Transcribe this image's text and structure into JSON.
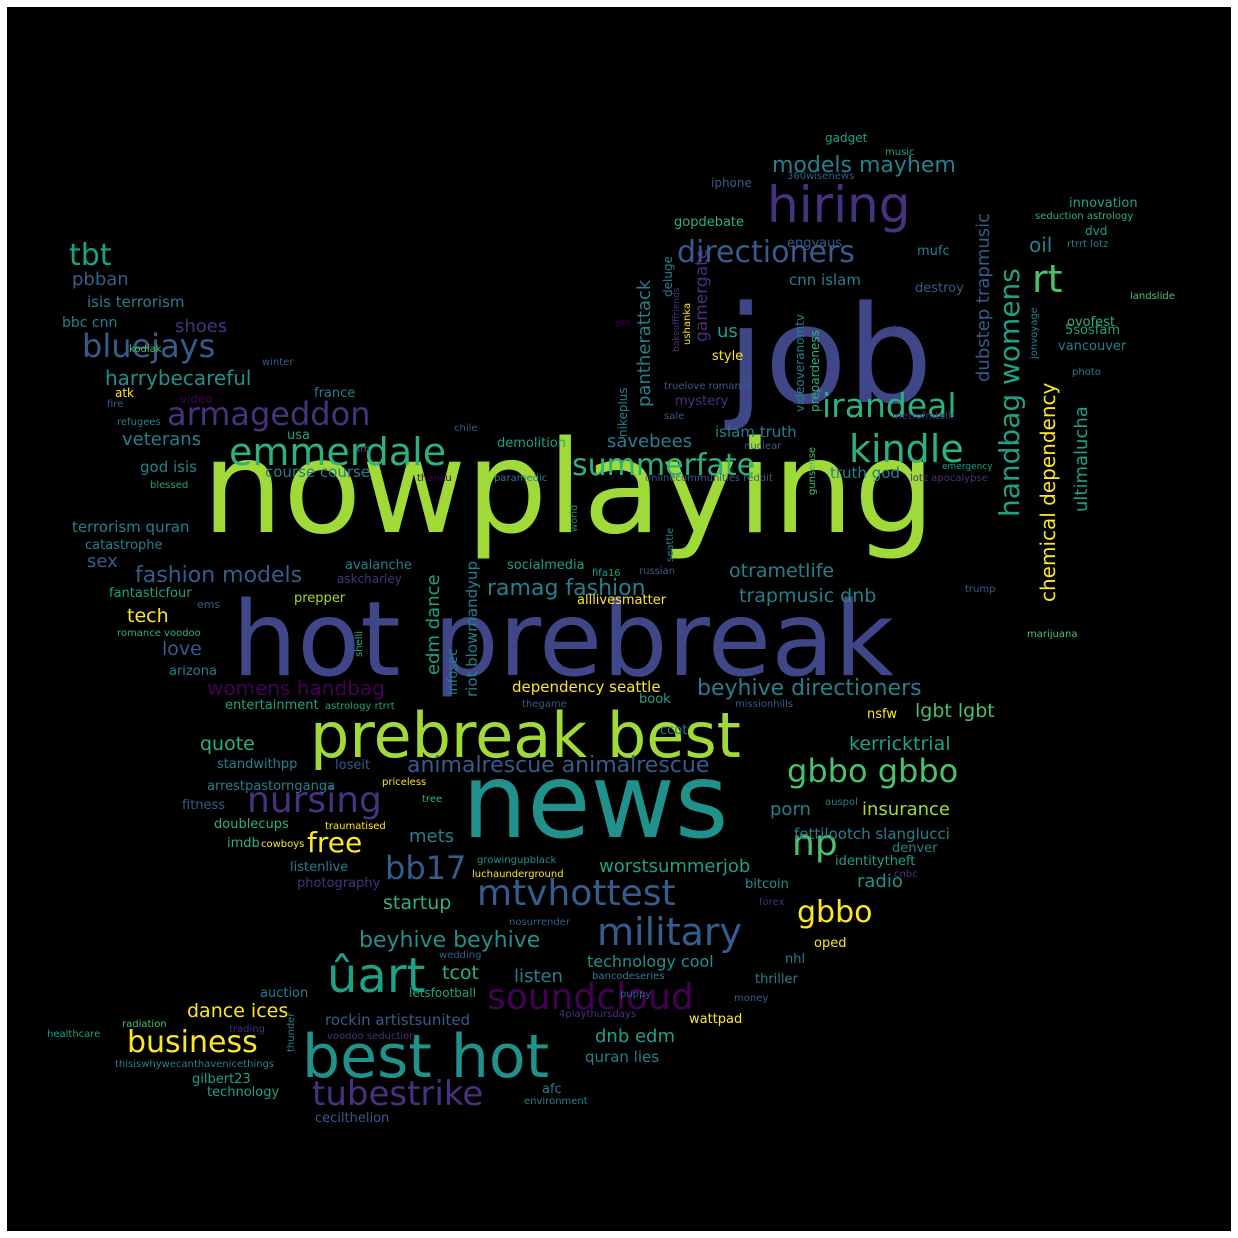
{
  "background": "#000000",
  "palette": {
    "yellow": "#fde725",
    "lime": "#a0da39",
    "green": "#4ac16d",
    "teal2": "#2db27d",
    "teal": "#1fa187",
    "cyan": "#21918c",
    "blue": "#277f8e",
    "blue2": "#365c8d",
    "indigo": "#3f4788",
    "violet": "#46327e",
    "purple": "#440154"
  },
  "words": [
    {
      "text": "nowplaying",
      "color": "lime"
    },
    {
      "text": "job",
      "color": "indigo"
    },
    {
      "text": "hot prebreak",
      "color": "indigo"
    },
    {
      "text": "news",
      "color": "cyan"
    },
    {
      "text": "prebreak best",
      "color": "lime"
    },
    {
      "text": "best hot",
      "color": "cyan"
    },
    {
      "text": "hiring",
      "color": "violet"
    },
    {
      "text": "emmerdale",
      "color": "teal2"
    },
    {
      "text": "kindle",
      "color": "teal2"
    },
    {
      "text": "rt",
      "color": "green"
    },
    {
      "text": "irandeal",
      "color": "teal2"
    },
    {
      "text": "directioners",
      "color": "blue2"
    },
    {
      "text": "summerfate",
      "color": "teal2"
    },
    {
      "text": "armageddon",
      "color": "violet"
    },
    {
      "text": "bluejays",
      "color": "blue2"
    },
    {
      "text": "tbt",
      "color": "teal"
    },
    {
      "text": "military",
      "color": "blue2"
    },
    {
      "text": "mtvhottest",
      "color": "blue2"
    },
    {
      "text": "nursing",
      "color": "violet"
    },
    {
      "text": "soundcloud",
      "color": "purple"
    },
    {
      "text": "tubestrike",
      "color": "violet"
    },
    {
      "text": "business",
      "color": "yellow"
    },
    {
      "text": "ûart",
      "color": "teal"
    },
    {
      "text": "gbbo gbbo",
      "color": "green"
    },
    {
      "text": "np",
      "color": "green"
    },
    {
      "text": "gbbo",
      "color": "yellow"
    },
    {
      "text": "bb17",
      "color": "blue2"
    },
    {
      "text": "free",
      "color": "yellow"
    },
    {
      "text": "handbag womens",
      "color": "teal"
    },
    {
      "text": "chemical dependency",
      "color": "yellow"
    },
    {
      "text": "dubstep trapmusic",
      "color": "blue2"
    },
    {
      "text": "ultimalucha",
      "color": "teal"
    },
    {
      "text": "models mayhem",
      "color": "blue"
    },
    {
      "text": "fashion models",
      "color": "blue2"
    },
    {
      "text": "ramag fashion",
      "color": "blue"
    },
    {
      "text": "womens handbag",
      "color": "purple"
    },
    {
      "text": "beyhive directioners",
      "color": "blue"
    },
    {
      "text": "animalrescue animalrescue",
      "color": "blue2"
    },
    {
      "text": "beyhive beyhive",
      "color": "cyan"
    },
    {
      "text": "harrybecareful",
      "color": "cyan"
    },
    {
      "text": "pbban",
      "color": "blue2"
    },
    {
      "text": "isis terrorism",
      "color": "blue"
    },
    {
      "text": "bbc cnn",
      "color": "blue"
    },
    {
      "text": "shoes",
      "color": "violet"
    },
    {
      "text": "veterans",
      "color": "blue"
    },
    {
      "text": "god isis",
      "color": "blue"
    },
    {
      "text": "terrorism quran",
      "color": "blue"
    },
    {
      "text": "catastrophe",
      "color": "blue"
    },
    {
      "text": "sex",
      "color": "blue2"
    },
    {
      "text": "fantasticfour",
      "color": "teal"
    },
    {
      "text": "tech",
      "color": "yellow"
    },
    {
      "text": "love",
      "color": "blue2"
    },
    {
      "text": "arizona",
      "color": "blue"
    },
    {
      "text": "course course",
      "color": "blue"
    },
    {
      "text": "savebees",
      "color": "blue"
    },
    {
      "text": "otrametlife",
      "color": "blue"
    },
    {
      "text": "trapmusic dnb",
      "color": "blue"
    },
    {
      "text": "edm dance",
      "color": "teal"
    },
    {
      "text": "riot blowmandyup",
      "color": "blue"
    },
    {
      "text": "infosec",
      "color": "blue"
    },
    {
      "text": "us",
      "color": "teal"
    },
    {
      "text": "oil",
      "color": "blue"
    },
    {
      "text": "cnn islam",
      "color": "blue"
    },
    {
      "text": "lgbt lgbt",
      "color": "green"
    },
    {
      "text": "kerricktrial",
      "color": "teal"
    },
    {
      "text": "insurance",
      "color": "lime"
    },
    {
      "text": "porn",
      "color": "blue"
    },
    {
      "text": "mets",
      "color": "blue"
    },
    {
      "text": "radio",
      "color": "cyan"
    },
    {
      "text": "startup",
      "color": "teal2"
    },
    {
      "text": "worstsummerjob",
      "color": "teal"
    },
    {
      "text": "quote",
      "color": "teal2"
    },
    {
      "text": "dance ices",
      "color": "yellow"
    },
    {
      "text": "tcot",
      "color": "teal2"
    },
    {
      "text": "listen",
      "color": "blue"
    },
    {
      "text": "dnb edm",
      "color": "teal"
    },
    {
      "text": "rockin artistsunited",
      "color": "blue2"
    },
    {
      "text": "quran lies",
      "color": "blue"
    },
    {
      "text": "technology cool",
      "color": "cyan"
    },
    {
      "text": "dependency seattle",
      "color": "yellow"
    },
    {
      "text": "pantherattack",
      "color": "blue"
    },
    {
      "text": "gamergate",
      "color": "violet"
    },
    {
      "text": "5sosfam",
      "color": "teal"
    },
    {
      "text": "vancouver",
      "color": "blue"
    },
    {
      "text": "innovation",
      "color": "teal"
    },
    {
      "text": "gopdebate",
      "color": "teal2"
    },
    {
      "text": "engvaus",
      "color": "blue2"
    },
    {
      "text": "mufc",
      "color": "blue"
    },
    {
      "text": "destroy",
      "color": "blue2"
    },
    {
      "text": "ovofest",
      "color": "teal2"
    },
    {
      "text": "dvd",
      "color": "teal"
    },
    {
      "text": "gadget",
      "color": "teal"
    },
    {
      "text": "iphone",
      "color": "blue2"
    },
    {
      "text": "music",
      "color": "teal"
    },
    {
      "text": "360wisenews",
      "color": "blue2"
    },
    {
      "text": "seduction astrology",
      "color": "teal2"
    },
    {
      "text": "rtrrt lotz",
      "color": "blue"
    },
    {
      "text": "landslide",
      "color": "green"
    },
    {
      "text": "photo",
      "color": "blue"
    },
    {
      "text": "uk",
      "color": "violet"
    },
    {
      "text": "jonvoyage",
      "color": "blue"
    },
    {
      "text": "style",
      "color": "yellow"
    },
    {
      "text": "prepardeness",
      "color": "teal2"
    },
    {
      "text": "videoveranomtv",
      "color": "blue"
    },
    {
      "text": "mystery",
      "color": "violet"
    },
    {
      "text": "truelove romance",
      "color": "blue2"
    },
    {
      "text": "sale",
      "color": "blue2"
    },
    {
      "text": "metrofmtalk",
      "color": "violet"
    },
    {
      "text": "islam truth",
      "color": "blue"
    },
    {
      "text": "nuclear",
      "color": "blue2"
    },
    {
      "text": "truth god",
      "color": "blue"
    },
    {
      "text": "gunsense",
      "color": "green"
    },
    {
      "text": "emergency",
      "color": "teal"
    },
    {
      "text": "lotz apocalypse",
      "color": "violet"
    },
    {
      "text": "onlinecommunities reddit",
      "color": "blue2"
    },
    {
      "text": "paramedic",
      "color": "blue"
    },
    {
      "text": "demolition",
      "color": "teal"
    },
    {
      "text": "thanku",
      "color": "purple"
    },
    {
      "text": "chile",
      "color": "blue2"
    },
    {
      "text": "world",
      "color": "blue"
    },
    {
      "text": "seattle",
      "color": "blue"
    },
    {
      "text": "fifa16",
      "color": "teal"
    },
    {
      "text": "socialmedia",
      "color": "teal"
    },
    {
      "text": "russian",
      "color": "blue2"
    },
    {
      "text": "avalanche",
      "color": "blue"
    },
    {
      "text": "askcharley",
      "color": "violet"
    },
    {
      "text": "prepper",
      "color": "lime"
    },
    {
      "text": "alllivesmatter",
      "color": "yellow"
    },
    {
      "text": "ems",
      "color": "blue2"
    },
    {
      "text": "romance voodoo",
      "color": "teal2"
    },
    {
      "text": "shelli",
      "color": "teal2"
    },
    {
      "text": "marijuana",
      "color": "green"
    },
    {
      "text": "trump",
      "color": "blue2"
    },
    {
      "text": "book",
      "color": "teal"
    },
    {
      "text": "thegame",
      "color": "blue2"
    },
    {
      "text": "missionhills",
      "color": "blue2"
    },
    {
      "text": "entertainment",
      "color": "teal"
    },
    {
      "text": "astrology rtrrt",
      "color": "teal"
    },
    {
      "text": "nsfw",
      "color": "yellow"
    },
    {
      "text": "ccot",
      "color": "blue"
    },
    {
      "text": "standwithpp",
      "color": "blue"
    },
    {
      "text": "loseit",
      "color": "blue2"
    },
    {
      "text": "arrestpastornganga",
      "color": "blue"
    },
    {
      "text": "priceless",
      "color": "yellow"
    },
    {
      "text": "fitness",
      "color": "blue2"
    },
    {
      "text": "tree",
      "color": "teal2"
    },
    {
      "text": "auspol",
      "color": "blue"
    },
    {
      "text": "traumatised",
      "color": "yellow"
    },
    {
      "text": "doublecups",
      "color": "teal2"
    },
    {
      "text": "imdb",
      "color": "teal2"
    },
    {
      "text": "cowboys",
      "color": "yellow"
    },
    {
      "text": "fettilootch slanglucci",
      "color": "blue"
    },
    {
      "text": "denver",
      "color": "blue"
    },
    {
      "text": "identitytheft",
      "color": "teal"
    },
    {
      "text": "cnbc",
      "color": "violet"
    },
    {
      "text": "listenlive",
      "color": "blue"
    },
    {
      "text": "growingupblack",
      "color": "cyan"
    },
    {
      "text": "luchaunderground",
      "color": "yellow"
    },
    {
      "text": "photography",
      "color": "violet"
    },
    {
      "text": "bitcoin",
      "color": "cyan"
    },
    {
      "text": "forex",
      "color": "violet"
    },
    {
      "text": "nosurrender",
      "color": "blue2"
    },
    {
      "text": "oped",
      "color": "yellow"
    },
    {
      "text": "nhl",
      "color": "blue"
    },
    {
      "text": "wedding",
      "color": "blue2"
    },
    {
      "text": "bancodeseries",
      "color": "blue"
    },
    {
      "text": "thriller",
      "color": "blue"
    },
    {
      "text": "auction",
      "color": "blue"
    },
    {
      "text": "letsfootball",
      "color": "teal"
    },
    {
      "text": "puppy",
      "color": "blue2"
    },
    {
      "text": "money",
      "color": "blue2"
    },
    {
      "text": "4playthursdays",
      "color": "violet"
    },
    {
      "text": "wattpad",
      "color": "yellow"
    },
    {
      "text": "radiation",
      "color": "green"
    },
    {
      "text": "trading",
      "color": "violet"
    },
    {
      "text": "healthcare",
      "color": "teal"
    },
    {
      "text": "voodoo seduction",
      "color": "violet"
    },
    {
      "text": "thunder",
      "color": "blue"
    },
    {
      "text": "thisiswhywecanthavenicethings",
      "color": "blue"
    },
    {
      "text": "gilbert23",
      "color": "teal"
    },
    {
      "text": "technology",
      "color": "teal"
    },
    {
      "text": "afc",
      "color": "blue"
    },
    {
      "text": "environment",
      "color": "blue"
    },
    {
      "text": "cecilthelion",
      "color": "blue2"
    },
    {
      "text": "blessed",
      "color": "teal"
    },
    {
      "text": "usa",
      "color": "teal"
    },
    {
      "text": "sm",
      "color": "blue2"
    },
    {
      "text": "france",
      "color": "blue"
    },
    {
      "text": "video",
      "color": "purple"
    },
    {
      "text": "fire",
      "color": "blue2"
    },
    {
      "text": "refugees",
      "color": "blue"
    },
    {
      "text": "atk",
      "color": "yellow"
    },
    {
      "text": "winter",
      "color": "blue2"
    },
    {
      "text": "kodiak",
      "color": "green"
    },
    {
      "text": "yes",
      "color": "purple"
    },
    {
      "text": "bakeofffriends",
      "color": "violet"
    },
    {
      "text": "deluge",
      "color": "blue"
    },
    {
      "text": "ushanka",
      "color": "yellow"
    },
    {
      "text": "nikeplus",
      "color": "blue"
    }
  ]
}
